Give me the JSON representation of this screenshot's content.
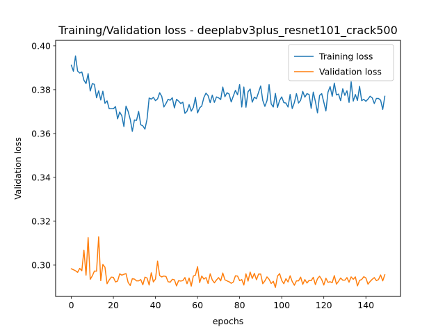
{
  "chart_data": {
    "type": "line",
    "title": "Training/Validation loss - deeplabv3plus_resnet101_crack500",
    "xlabel": "epochs",
    "ylabel": "Validation loss",
    "xlim": [
      -7.45,
      156.45
    ],
    "ylim": [
      0.2857,
      0.4025
    ],
    "xticks": [
      0,
      20,
      40,
      60,
      80,
      100,
      120,
      140
    ],
    "yticks": [
      0.3,
      0.32,
      0.34,
      0.36,
      0.38,
      0.4
    ],
    "x_start": 0,
    "x_end": 149,
    "grid": false,
    "legend_position": "upper right",
    "series": [
      {
        "name": "Training loss",
        "color": "#1f77b4",
        "values": [
          0.3912,
          0.3884,
          0.3954,
          0.3885,
          0.3876,
          0.3881,
          0.3843,
          0.3828,
          0.3873,
          0.3794,
          0.3828,
          0.3824,
          0.3763,
          0.3795,
          0.3753,
          0.3793,
          0.3738,
          0.3749,
          0.3713,
          0.3713,
          0.3713,
          0.3723,
          0.3667,
          0.3698,
          0.3681,
          0.3632,
          0.3725,
          0.3701,
          0.3665,
          0.361,
          0.3662,
          0.366,
          0.3701,
          0.364,
          0.3635,
          0.362,
          0.3666,
          0.3762,
          0.3757,
          0.3765,
          0.375,
          0.3758,
          0.3786,
          0.3769,
          0.3721,
          0.3737,
          0.3756,
          0.3752,
          0.3763,
          0.3717,
          0.3756,
          0.3748,
          0.3737,
          0.3743,
          0.3692,
          0.3702,
          0.3732,
          0.3702,
          0.3719,
          0.3765,
          0.3694,
          0.3717,
          0.3726,
          0.3764,
          0.3784,
          0.3773,
          0.3741,
          0.3775,
          0.3742,
          0.3767,
          0.3763,
          0.3755,
          0.3812,
          0.3768,
          0.3786,
          0.378,
          0.3744,
          0.3771,
          0.3797,
          0.3777,
          0.3823,
          0.3721,
          0.3812,
          0.372,
          0.3791,
          0.3803,
          0.3743,
          0.3766,
          0.3759,
          0.3788,
          0.3817,
          0.3751,
          0.3724,
          0.375,
          0.3823,
          0.3735,
          0.3721,
          0.3783,
          0.3719,
          0.3751,
          0.3767,
          0.3741,
          0.3739,
          0.3721,
          0.3778,
          0.3714,
          0.3741,
          0.3782,
          0.3739,
          0.3752,
          0.3792,
          0.3766,
          0.3782,
          0.3778,
          0.3715,
          0.3789,
          0.3746,
          0.3694,
          0.3774,
          0.3782,
          0.3743,
          0.3703,
          0.3789,
          0.3814,
          0.377,
          0.383,
          0.3776,
          0.378,
          0.375,
          0.3804,
          0.3774,
          0.3795,
          0.3742,
          0.3836,
          0.3748,
          0.3778,
          0.3751,
          0.3815,
          0.375,
          0.3756,
          0.3747,
          0.3757,
          0.377,
          0.3763,
          0.3737,
          0.376,
          0.376,
          0.3752,
          0.371,
          0.377
        ]
      },
      {
        "name": "Validation loss",
        "color": "#ff7f0e",
        "values": [
          0.2983,
          0.2979,
          0.2974,
          0.2967,
          0.2985,
          0.2974,
          0.3068,
          0.2954,
          0.3125,
          0.2935,
          0.2951,
          0.2973,
          0.2972,
          0.3129,
          0.2929,
          0.3003,
          0.299,
          0.2915,
          0.2932,
          0.2945,
          0.2944,
          0.2923,
          0.2927,
          0.296,
          0.2954,
          0.2958,
          0.2961,
          0.2921,
          0.2907,
          0.2938,
          0.2936,
          0.2928,
          0.2928,
          0.2934,
          0.291,
          0.2945,
          0.2941,
          0.2909,
          0.2965,
          0.2923,
          0.2936,
          0.3018,
          0.2952,
          0.2946,
          0.295,
          0.2948,
          0.2924,
          0.2922,
          0.2935,
          0.2933,
          0.2905,
          0.2929,
          0.2927,
          0.2929,
          0.2943,
          0.2915,
          0.2941,
          0.2904,
          0.295,
          0.2954,
          0.2993,
          0.292,
          0.295,
          0.2936,
          0.2943,
          0.2916,
          0.296,
          0.2932,
          0.2919,
          0.2932,
          0.2943,
          0.2928,
          0.2964,
          0.2933,
          0.2928,
          0.2924,
          0.2917,
          0.2923,
          0.2951,
          0.295,
          0.2929,
          0.2934,
          0.2909,
          0.296,
          0.2927,
          0.2968,
          0.2939,
          0.2962,
          0.2933,
          0.2959,
          0.2959,
          0.2915,
          0.2928,
          0.2946,
          0.2935,
          0.2916,
          0.2926,
          0.2898,
          0.295,
          0.2961,
          0.293,
          0.2915,
          0.2938,
          0.2923,
          0.2951,
          0.2925,
          0.2908,
          0.2928,
          0.2928,
          0.2945,
          0.2912,
          0.2934,
          0.2918,
          0.293,
          0.2929,
          0.2944,
          0.2911,
          0.2938,
          0.2949,
          0.2934,
          0.2909,
          0.294,
          0.2921,
          0.2924,
          0.292,
          0.2952,
          0.2913,
          0.2926,
          0.2941,
          0.2931,
          0.2931,
          0.2943,
          0.2922,
          0.2946,
          0.2935,
          0.2946,
          0.2905,
          0.293,
          0.2934,
          0.2947,
          0.2941,
          0.2913,
          0.2925,
          0.2935,
          0.2943,
          0.2929,
          0.2934,
          0.2955,
          0.2928,
          0.2956
        ]
      }
    ]
  }
}
